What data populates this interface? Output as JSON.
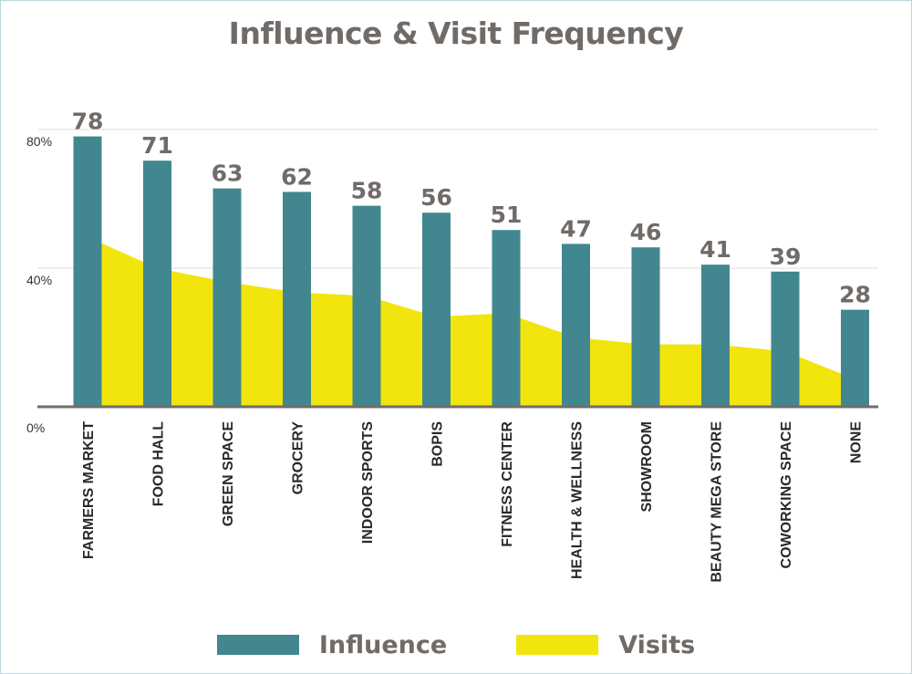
{
  "chart_data": {
    "type": "bar",
    "title": "Influence & Visit Frequency",
    "categories": [
      "FARMERS MARKET",
      "FOOD HALL",
      "GREEN SPACE",
      "GROCERY",
      "INDOOR SPORTS",
      "BOPIS",
      "FITNESS CENTER",
      "HEALTH & WELLNESS",
      "SHOWROOM",
      "BEAUTY MEGA STORE",
      "COWORKING SPACE",
      "NONE"
    ],
    "series": [
      {
        "name": "Influence",
        "type": "bar",
        "color": "#42878f",
        "values": [
          78,
          71,
          63,
          62,
          58,
          56,
          51,
          47,
          46,
          41,
          39,
          28
        ],
        "data_labels": [
          "78",
          "71",
          "63",
          "62",
          "58",
          "56",
          "51",
          "47",
          "46",
          "41",
          "39",
          "28"
        ]
      },
      {
        "name": "Visits",
        "type": "area",
        "color": "#f2e50d",
        "values": [
          49,
          40,
          36,
          33,
          32,
          26,
          27,
          20,
          18,
          18,
          16,
          8
        ]
      }
    ],
    "y_ticks": [
      "0%",
      "40%",
      "80%"
    ],
    "y_tick_values": [
      0,
      40,
      80
    ],
    "ylim": [
      0,
      80
    ],
    "grid": true,
    "legend_position": "bottom"
  },
  "legend": {
    "items": [
      {
        "label": "Influence",
        "color": "#42878f"
      },
      {
        "label": "Visits",
        "color": "#f2e50d"
      }
    ]
  }
}
